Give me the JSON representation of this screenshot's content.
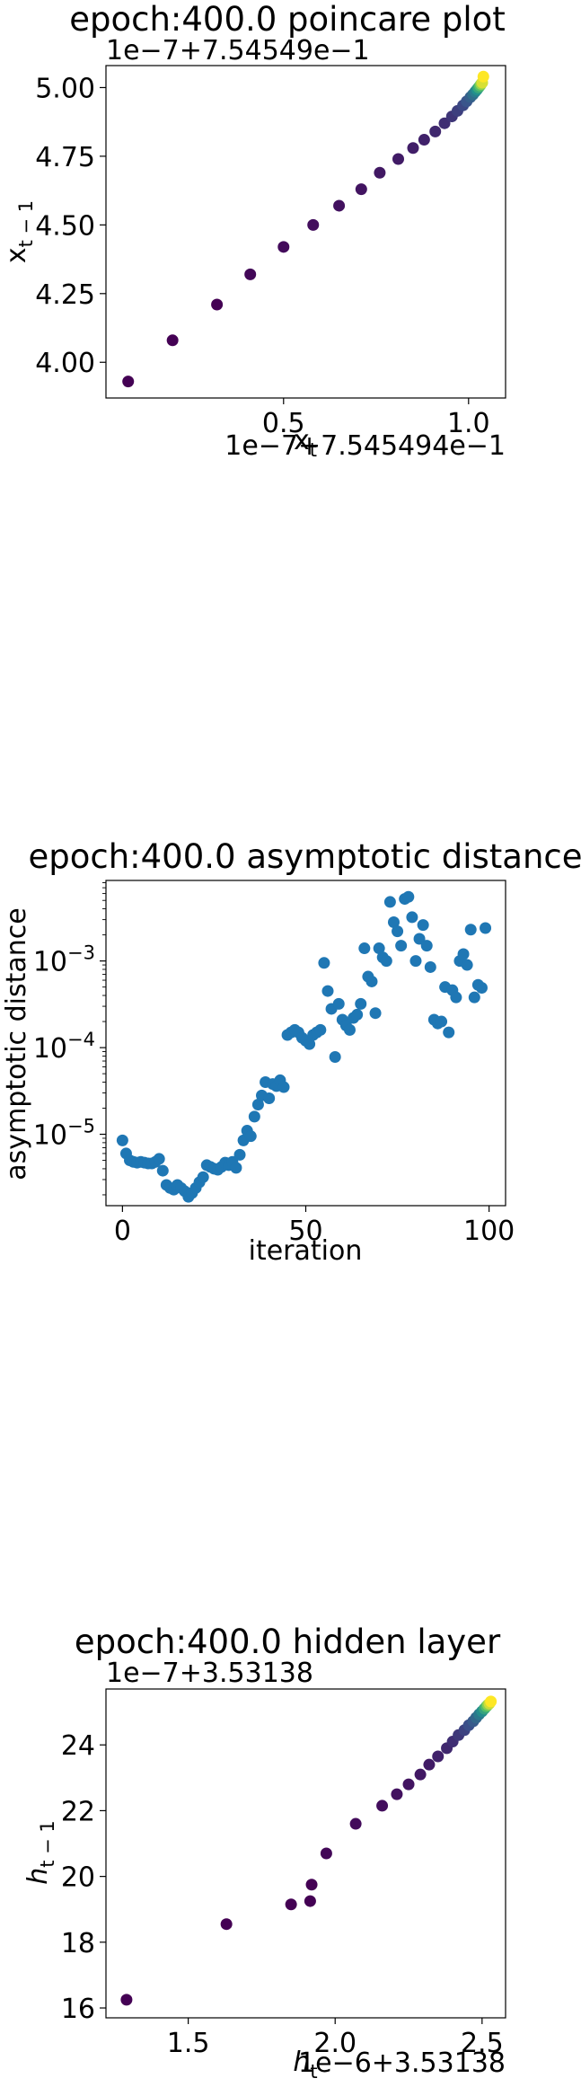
{
  "chart_data": [
    {
      "type": "scatter",
      "title": "epoch:400.0 poincare plot",
      "xlabel_main": "x",
      "xlabel_sub": "t",
      "ylabel_main": "x",
      "ylabel_sub": "t − 1",
      "x_offset_label": "1e−7+7.545494e−1",
      "y_offset_label": "1e−7+7.54549e−1",
      "xlim": [
        0.02,
        1.1
      ],
      "ylim": [
        3.87,
        5.08
      ],
      "x_ticks": [
        0.5,
        1.0
      ],
      "x_tick_labels": [
        "0.5",
        "1.0"
      ],
      "y_ticks": [
        4.0,
        4.25,
        4.5,
        4.75,
        5.0
      ],
      "y_tick_labels": [
        "4.00",
        "4.25",
        "4.50",
        "4.75",
        "5.00"
      ],
      "colormap": [
        "#440154",
        "#3b528b",
        "#21918c",
        "#5ec962",
        "#fde725"
      ],
      "points": [
        {
          "x": 0.08,
          "y": 3.93,
          "c": 0.0
        },
        {
          "x": 0.2,
          "y": 4.08,
          "c": 0.0
        },
        {
          "x": 0.32,
          "y": 4.21,
          "c": 0.0
        },
        {
          "x": 0.41,
          "y": 4.32,
          "c": 0.02
        },
        {
          "x": 0.5,
          "y": 4.42,
          "c": 0.03
        },
        {
          "x": 0.58,
          "y": 4.5,
          "c": 0.04
        },
        {
          "x": 0.65,
          "y": 4.57,
          "c": 0.05
        },
        {
          "x": 0.71,
          "y": 4.63,
          "c": 0.06
        },
        {
          "x": 0.76,
          "y": 4.69,
          "c": 0.07
        },
        {
          "x": 0.81,
          "y": 4.74,
          "c": 0.08
        },
        {
          "x": 0.85,
          "y": 4.78,
          "c": 0.09
        },
        {
          "x": 0.88,
          "y": 4.81,
          "c": 0.1
        },
        {
          "x": 0.91,
          "y": 4.84,
          "c": 0.12
        },
        {
          "x": 0.935,
          "y": 4.87,
          "c": 0.14
        },
        {
          "x": 0.955,
          "y": 4.895,
          "c": 0.16
        },
        {
          "x": 0.97,
          "y": 4.915,
          "c": 0.19
        },
        {
          "x": 0.985,
          "y": 4.935,
          "c": 0.22
        },
        {
          "x": 0.995,
          "y": 4.95,
          "c": 0.26
        },
        {
          "x": 1.005,
          "y": 4.965,
          "c": 0.3
        },
        {
          "x": 1.012,
          "y": 4.975,
          "c": 0.36
        },
        {
          "x": 1.018,
          "y": 4.985,
          "c": 0.42
        },
        {
          "x": 1.023,
          "y": 4.993,
          "c": 0.5
        },
        {
          "x": 1.027,
          "y": 5.0,
          "c": 0.6
        },
        {
          "x": 1.031,
          "y": 5.007,
          "c": 0.72
        },
        {
          "x": 1.034,
          "y": 5.013,
          "c": 0.84
        },
        {
          "x": 1.037,
          "y": 5.018,
          "c": 0.94
        },
        {
          "x": 1.04,
          "y": 5.04,
          "c": 1.0
        }
      ]
    },
    {
      "type": "scatter",
      "title": "epoch:400.0 asymptotic distance",
      "xlabel": "iteration",
      "ylabel": "asymptotic distance",
      "yscale": "log",
      "xlim": [
        -4.5,
        104.5
      ],
      "ylim": [
        1.5e-06,
        0.0085
      ],
      "x_ticks": [
        0,
        50,
        100
      ],
      "x_tick_labels": [
        "0",
        "50",
        "100"
      ],
      "y_ticks": [
        1e-05,
        0.0001,
        0.001
      ],
      "y_tick_base": [
        "10",
        "10",
        "10"
      ],
      "y_tick_exp": [
        "−5",
        "−4",
        "−3"
      ],
      "color": "#1f77b4",
      "x": [
        0,
        1,
        2,
        3,
        4,
        5,
        6,
        7,
        8,
        9,
        10,
        11,
        12,
        13,
        14,
        15,
        16,
        17,
        18,
        19,
        20,
        21,
        22,
        23,
        24,
        25,
        26,
        27,
        28,
        29,
        30,
        31,
        32,
        33,
        34,
        35,
        36,
        37,
        38,
        39,
        40,
        41,
        42,
        43,
        44,
        45,
        46,
        47,
        48,
        49,
        50,
        51,
        52,
        53,
        54,
        55,
        56,
        57,
        58,
        59,
        60,
        61,
        62,
        63,
        64,
        65,
        66,
        67,
        68,
        69,
        70,
        71,
        72,
        73,
        74,
        75,
        76,
        77,
        78,
        79,
        80,
        81,
        82,
        83,
        84,
        85,
        86,
        87,
        88,
        89,
        90,
        91,
        92,
        93,
        94,
        95,
        96,
        97,
        98,
        99
      ],
      "y": [
        8.5e-06,
        6e-06,
        5e-06,
        4.8e-06,
        4.7e-06,
        4.8e-06,
        4.7e-06,
        4.6e-06,
        4.6e-06,
        4.8e-06,
        5.2e-06,
        3.8e-06,
        2.6e-06,
        2.4e-06,
        2.3e-06,
        2.6e-06,
        2.4e-06,
        2.2e-06,
        1.9e-06,
        2.1e-06,
        2.4e-06,
        2.8e-06,
        3.2e-06,
        4.4e-06,
        4.2e-06,
        4e-06,
        3.9e-06,
        4.2e-06,
        4.7e-06,
        4.4e-06,
        4.8e-06,
        4.1e-06,
        5.8e-06,
        8.5e-06,
        1.1e-05,
        9.5e-06,
        1.6e-05,
        2.2e-05,
        2.8e-05,
        4e-05,
        2.6e-05,
        3.8e-05,
        3.6e-05,
        4.2e-05,
        3.5e-05,
        0.00014,
        0.00015,
        0.00016,
        0.00015,
        0.00013,
        0.00012,
        0.00011,
        0.00014,
        0.00015,
        0.00016,
        0.00095,
        0.00045,
        0.00028,
        7.8e-05,
        0.00032,
        0.00021,
        0.00018,
        0.00016,
        0.00022,
        0.00024,
        0.00032,
        0.0014,
        0.00066,
        0.00058,
        0.00025,
        0.0014,
        0.0011,
        0.001,
        0.0048,
        0.0028,
        0.0022,
        0.0015,
        0.0052,
        0.0055,
        0.0032,
        0.001,
        0.0018,
        0.0026,
        0.0015,
        0.00085,
        0.00021,
        0.00019,
        0.0002,
        0.0005,
        0.00015,
        0.00046,
        0.00038,
        0.001,
        0.0012,
        0.0009,
        0.0023,
        0.00038,
        0.00053,
        0.00049,
        0.0024
      ]
    },
    {
      "type": "scatter",
      "title": "epoch:400.0 hidden layer",
      "xlabel_main": "h",
      "xlabel_sub": "t",
      "ylabel_main": "h",
      "ylabel_sub": "t − 1",
      "x_offset_label": "1e−6+3.53138",
      "y_offset_label": "1e−7+3.53138",
      "xlim": [
        1.22,
        2.58
      ],
      "ylim": [
        15.7,
        25.7
      ],
      "x_ticks": [
        1.5,
        2.0,
        2.5
      ],
      "x_tick_labels": [
        "1.5",
        "2.0",
        "2.5"
      ],
      "y_ticks": [
        16,
        18,
        20,
        22,
        24
      ],
      "y_tick_labels": [
        "16",
        "18",
        "20",
        "22",
        "24"
      ],
      "colormap": [
        "#440154",
        "#3b528b",
        "#21918c",
        "#5ec962",
        "#fde725"
      ],
      "points": [
        {
          "x": 1.29,
          "y": 16.25,
          "c": 0.0
        },
        {
          "x": 1.63,
          "y": 18.55,
          "c": 0.0
        },
        {
          "x": 1.85,
          "y": 19.15,
          "c": 0.0
        },
        {
          "x": 1.915,
          "y": 19.25,
          "c": 0.0
        },
        {
          "x": 1.92,
          "y": 19.75,
          "c": 0.0
        },
        {
          "x": 1.97,
          "y": 20.7,
          "c": 0.02
        },
        {
          "x": 2.07,
          "y": 21.6,
          "c": 0.03
        },
        {
          "x": 2.16,
          "y": 22.15,
          "c": 0.04
        },
        {
          "x": 2.21,
          "y": 22.5,
          "c": 0.05
        },
        {
          "x": 2.25,
          "y": 22.8,
          "c": 0.06
        },
        {
          "x": 2.29,
          "y": 23.1,
          "c": 0.07
        },
        {
          "x": 2.32,
          "y": 23.4,
          "c": 0.08
        },
        {
          "x": 2.35,
          "y": 23.65,
          "c": 0.1
        },
        {
          "x": 2.38,
          "y": 23.9,
          "c": 0.12
        },
        {
          "x": 2.4,
          "y": 24.1,
          "c": 0.14
        },
        {
          "x": 2.42,
          "y": 24.3,
          "c": 0.17
        },
        {
          "x": 2.44,
          "y": 24.45,
          "c": 0.2
        },
        {
          "x": 2.455,
          "y": 24.6,
          "c": 0.24
        },
        {
          "x": 2.47,
          "y": 24.72,
          "c": 0.28
        },
        {
          "x": 2.48,
          "y": 24.83,
          "c": 0.33
        },
        {
          "x": 2.49,
          "y": 24.93,
          "c": 0.4
        },
        {
          "x": 2.5,
          "y": 25.02,
          "c": 0.48
        },
        {
          "x": 2.508,
          "y": 25.1,
          "c": 0.58
        },
        {
          "x": 2.515,
          "y": 25.17,
          "c": 0.7
        },
        {
          "x": 2.52,
          "y": 25.22,
          "c": 0.82
        },
        {
          "x": 2.525,
          "y": 25.26,
          "c": 0.92
        },
        {
          "x": 2.53,
          "y": 25.32,
          "c": 1.0
        }
      ]
    }
  ]
}
